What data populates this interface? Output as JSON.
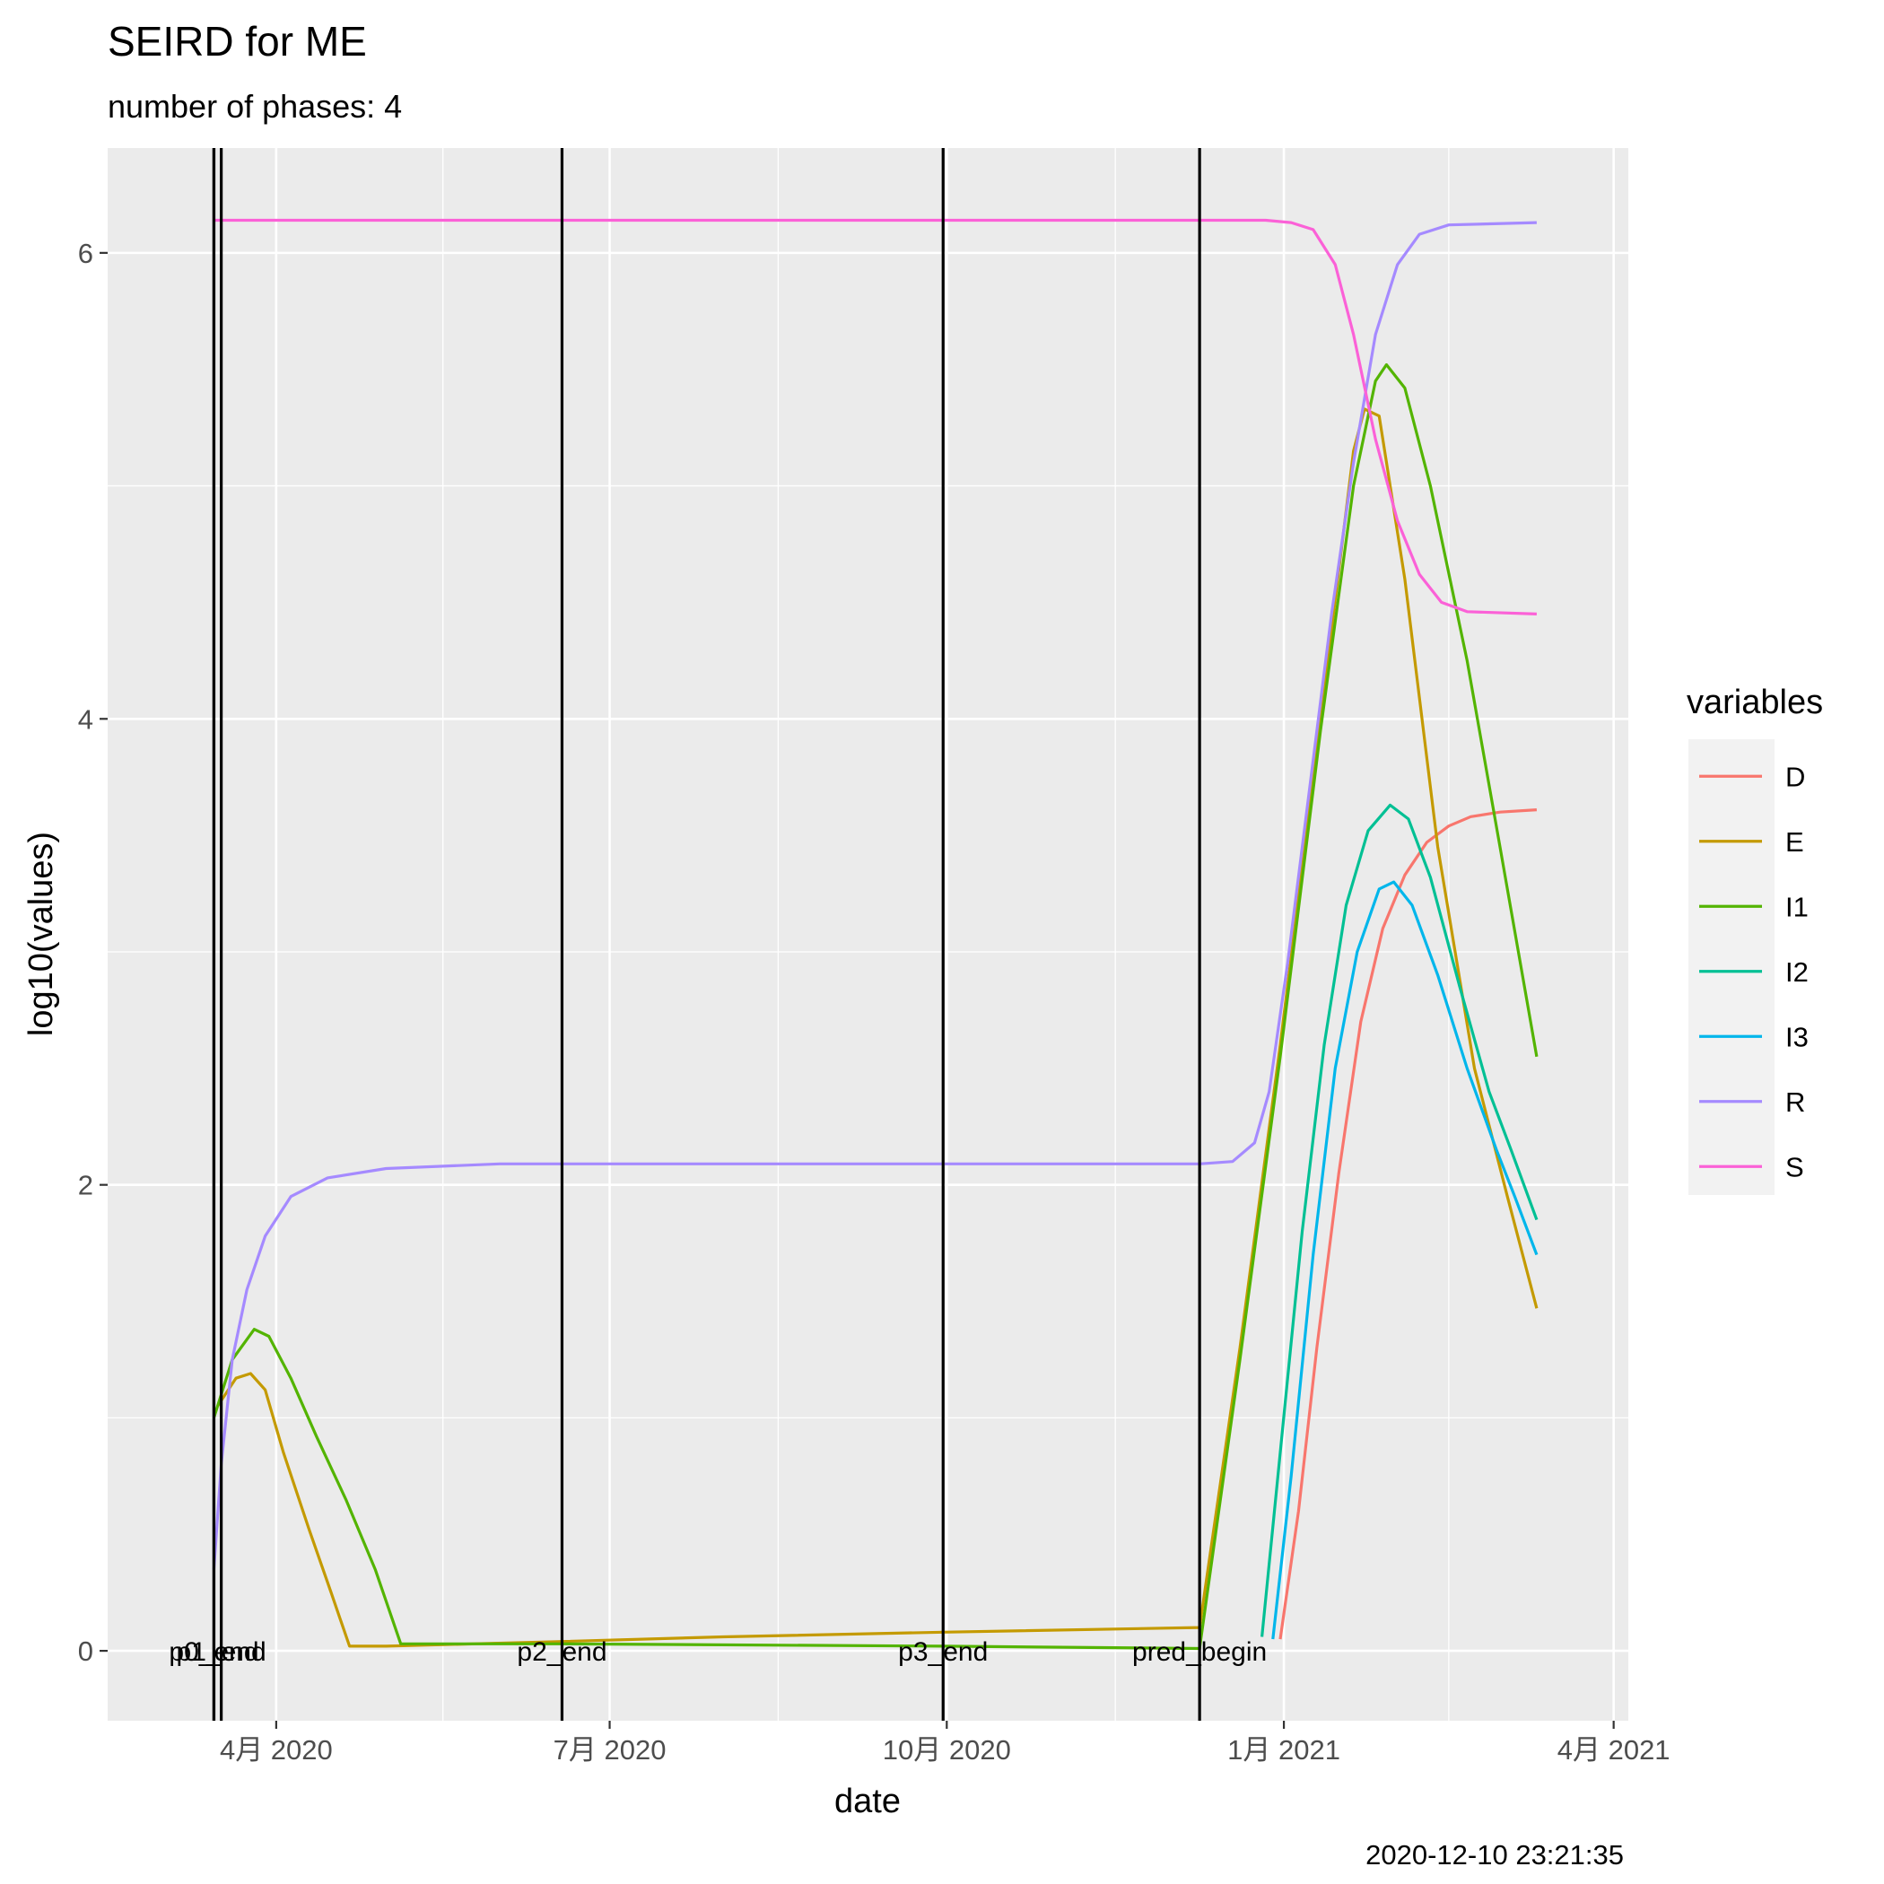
{
  "chart_data": {
    "type": "line",
    "title": "SEIRD for ME",
    "subtitle": "number of phases: 4",
    "xlabel": "date",
    "ylabel": "log10(values)",
    "caption": "2020-12-10 23:21:35",
    "x_range": [
      "2020-02-15",
      "2021-04-05"
    ],
    "ylim": [
      -0.3,
      6.45
    ],
    "x_ticks": [
      {
        "date": "2020-04-01",
        "label": "4月 2020"
      },
      {
        "date": "2020-07-01",
        "label": "7月 2020"
      },
      {
        "date": "2020-10-01",
        "label": "10月 2020"
      },
      {
        "date": "2021-01-01",
        "label": "1月 2021"
      },
      {
        "date": "2021-04-01",
        "label": "4月 2021"
      }
    ],
    "y_ticks": [
      0,
      2,
      4,
      6
    ],
    "grid": true,
    "legend": {
      "title": "variables",
      "position": "right"
    },
    "vlines": [
      {
        "date": "2020-03-15",
        "label": ""
      },
      {
        "date": "2020-03-17",
        "label": "p1_end"
      },
      {
        "date": "2020-03-15",
        "label": "p0_end"
      },
      {
        "date": "2020-06-18",
        "label": "p2_end"
      },
      {
        "date": "2020-09-30",
        "label": "p3_end"
      },
      {
        "date": "2020-12-09",
        "label": "pred_begin"
      }
    ],
    "series": [
      {
        "name": "D",
        "color": "#F8766D",
        "points": [
          [
            "2020-12-31",
            0.05
          ],
          [
            "2021-01-05",
            0.6
          ],
          [
            "2021-01-10",
            1.3
          ],
          [
            "2021-01-16",
            2.05
          ],
          [
            "2021-01-22",
            2.7
          ],
          [
            "2021-01-28",
            3.1
          ],
          [
            "2021-02-03",
            3.33
          ],
          [
            "2021-02-09",
            3.47
          ],
          [
            "2021-02-15",
            3.54
          ],
          [
            "2021-02-21",
            3.58
          ],
          [
            "2021-03-01",
            3.6
          ],
          [
            "2021-03-11",
            3.61
          ]
        ]
      },
      {
        "name": "E",
        "color": "#C49A00",
        "points": [
          [
            "2020-03-16",
            1.05
          ],
          [
            "2020-03-21",
            1.17
          ],
          [
            "2020-03-25",
            1.19
          ],
          [
            "2020-03-29",
            1.12
          ],
          [
            "2020-04-03",
            0.85
          ],
          [
            "2020-04-10",
            0.52
          ],
          [
            "2020-04-16",
            0.25
          ],
          [
            "2020-04-21",
            0.02
          ],
          [
            "2020-05-01",
            0.02
          ],
          [
            "2020-06-18",
            0.04
          ],
          [
            "2020-08-01",
            0.06
          ],
          [
            "2020-09-30",
            0.08
          ],
          [
            "2020-12-09",
            0.1
          ],
          [
            "2020-12-20",
            1.3
          ],
          [
            "2020-12-31",
            2.6
          ],
          [
            "2021-01-11",
            4.0
          ],
          [
            "2021-01-20",
            5.15
          ],
          [
            "2021-01-23",
            5.33
          ],
          [
            "2021-01-27",
            5.3
          ],
          [
            "2021-02-03",
            4.6
          ],
          [
            "2021-02-12",
            3.45
          ],
          [
            "2021-02-22",
            2.5
          ],
          [
            "2021-03-03",
            1.95
          ],
          [
            "2021-03-11",
            1.47
          ]
        ]
      },
      {
        "name": "I1",
        "color": "#53B400",
        "points": [
          [
            "2020-03-15",
            1.0
          ],
          [
            "2020-03-20",
            1.25
          ],
          [
            "2020-03-26",
            1.38
          ],
          [
            "2020-03-30",
            1.35
          ],
          [
            "2020-04-05",
            1.17
          ],
          [
            "2020-04-12",
            0.92
          ],
          [
            "2020-04-20",
            0.65
          ],
          [
            "2020-04-28",
            0.35
          ],
          [
            "2020-05-05",
            0.03
          ],
          [
            "2020-06-18",
            0.03
          ],
          [
            "2020-09-30",
            0.02
          ],
          [
            "2020-12-09",
            0.01
          ],
          [
            "2020-12-20",
            1.25
          ],
          [
            "2020-12-31",
            2.55
          ],
          [
            "2021-01-11",
            3.95
          ],
          [
            "2021-01-20",
            5.0
          ],
          [
            "2021-01-26",
            5.45
          ],
          [
            "2021-01-29",
            5.52
          ],
          [
            "2021-02-03",
            5.42
          ],
          [
            "2021-02-10",
            5.0
          ],
          [
            "2021-02-20",
            4.25
          ],
          [
            "2021-03-01",
            3.45
          ],
          [
            "2021-03-11",
            2.55
          ]
        ]
      },
      {
        "name": "I2",
        "color": "#00C094",
        "points": [
          [
            "2020-12-26",
            0.06
          ],
          [
            "2020-12-31",
            0.85
          ],
          [
            "2021-01-06",
            1.8
          ],
          [
            "2021-01-12",
            2.6
          ],
          [
            "2021-01-18",
            3.2
          ],
          [
            "2021-01-24",
            3.52
          ],
          [
            "2021-01-30",
            3.63
          ],
          [
            "2021-02-04",
            3.57
          ],
          [
            "2021-02-10",
            3.32
          ],
          [
            "2021-02-18",
            2.85
          ],
          [
            "2021-02-26",
            2.4
          ],
          [
            "2021-03-04",
            2.15
          ],
          [
            "2021-03-11",
            1.85
          ]
        ]
      },
      {
        "name": "I3",
        "color": "#00B6EB",
        "points": [
          [
            "2020-12-29",
            0.05
          ],
          [
            "2021-01-03",
            0.75
          ],
          [
            "2021-01-09",
            1.7
          ],
          [
            "2021-01-15",
            2.5
          ],
          [
            "2021-01-21",
            3.0
          ],
          [
            "2021-01-27",
            3.27
          ],
          [
            "2021-01-31",
            3.3
          ],
          [
            "2021-02-05",
            3.2
          ],
          [
            "2021-02-12",
            2.9
          ],
          [
            "2021-02-20",
            2.5
          ],
          [
            "2021-02-28",
            2.15
          ],
          [
            "2021-03-05",
            1.95
          ],
          [
            "2021-03-11",
            1.7
          ]
        ]
      },
      {
        "name": "R",
        "color": "#A58AFF",
        "points": [
          [
            "2020-03-15",
            0.35
          ],
          [
            "2020-03-17",
            0.8
          ],
          [
            "2020-03-20",
            1.25
          ],
          [
            "2020-03-24",
            1.55
          ],
          [
            "2020-03-29",
            1.78
          ],
          [
            "2020-04-05",
            1.95
          ],
          [
            "2020-04-15",
            2.03
          ],
          [
            "2020-05-01",
            2.07
          ],
          [
            "2020-06-01",
            2.09
          ],
          [
            "2020-09-01",
            2.09
          ],
          [
            "2020-12-09",
            2.09
          ],
          [
            "2020-12-18",
            2.1
          ],
          [
            "2020-12-24",
            2.18
          ],
          [
            "2020-12-28",
            2.4
          ],
          [
            "2021-01-02",
            2.95
          ],
          [
            "2021-01-08",
            3.7
          ],
          [
            "2021-01-14",
            4.45
          ],
          [
            "2021-01-20",
            5.1
          ],
          [
            "2021-01-26",
            5.65
          ],
          [
            "2021-02-01",
            5.95
          ],
          [
            "2021-02-07",
            6.08
          ],
          [
            "2021-02-15",
            6.12
          ],
          [
            "2021-03-11",
            6.13
          ]
        ]
      },
      {
        "name": "S",
        "color": "#FB61D7",
        "points": [
          [
            "2020-03-15",
            6.14
          ],
          [
            "2020-12-27",
            6.14
          ],
          [
            "2021-01-03",
            6.13
          ],
          [
            "2021-01-09",
            6.1
          ],
          [
            "2021-01-15",
            5.95
          ],
          [
            "2021-01-20",
            5.65
          ],
          [
            "2021-01-26",
            5.2
          ],
          [
            "2021-02-01",
            4.85
          ],
          [
            "2021-02-07",
            4.62
          ],
          [
            "2021-02-13",
            4.5
          ],
          [
            "2021-02-20",
            4.46
          ],
          [
            "2021-03-11",
            4.45
          ]
        ]
      }
    ]
  }
}
